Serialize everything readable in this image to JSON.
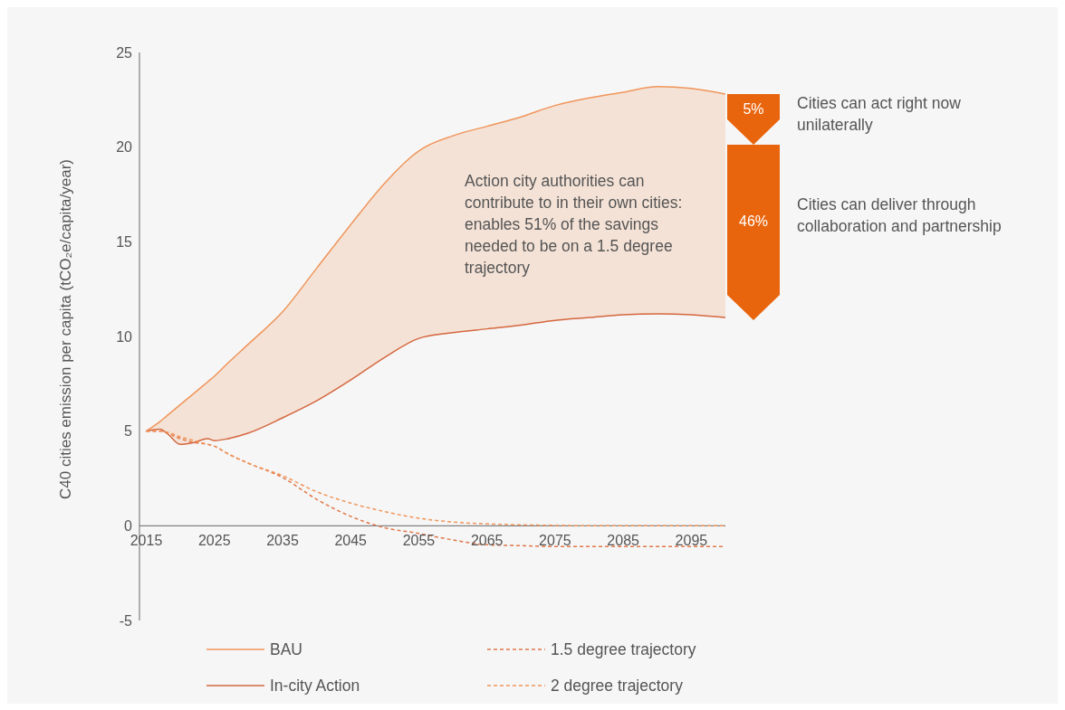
{
  "chart_data": {
    "type": "line",
    "ylabel": "C40 cities emission per capita (tCO₂e/capita/year)",
    "x": [
      2015,
      2017,
      2018,
      2020,
      2022,
      2024,
      2025,
      2027,
      2030,
      2035,
      2040,
      2045,
      2050,
      2055,
      2060,
      2065,
      2070,
      2075,
      2080,
      2085,
      2090,
      2095,
      2100
    ],
    "series": [
      {
        "name": "BAU",
        "color": "#f0955a",
        "values": [
          5,
          5.5,
          5.8,
          6.4,
          7.0,
          7.6,
          7.9,
          8.6,
          9.6,
          11.3,
          13.6,
          15.9,
          18.1,
          19.8,
          20.6,
          21.1,
          21.6,
          22.2,
          22.6,
          22.9,
          23.2,
          23.1,
          22.8
        ],
        "lower": [
          5,
          5.1,
          4.9,
          4.3,
          4.4,
          4.6,
          4.5,
          4.6,
          4.9,
          5.7,
          6.6,
          7.7,
          8.9,
          9.9,
          10.2,
          10.4,
          10.6,
          10.85,
          11.0,
          11.15,
          11.2,
          11.15,
          11.0
        ],
        "upper": [
          5,
          5.5,
          5.8,
          6.4,
          7.0,
          7.6,
          7.9,
          8.6,
          9.6,
          11.3,
          13.6,
          15.9,
          18.1,
          19.8,
          20.6,
          21.1,
          21.6,
          22.2,
          22.6,
          22.9,
          23.2,
          23.1,
          22.8
        ]
      },
      {
        "name": "In-city Action",
        "color": "#d5673f",
        "values": [
          5,
          5.1,
          4.9,
          4.3,
          4.4,
          4.6,
          4.5,
          4.6,
          4.9,
          5.7,
          6.6,
          7.7,
          8.9,
          9.9,
          10.2,
          10.4,
          10.6,
          10.85,
          11.0,
          11.15,
          11.2,
          11.15,
          11.0
        ]
      },
      {
        "name": "1.5 degree trajectory",
        "color": "#e0784a",
        "line_style": "dashed",
        "values": [
          5,
          5,
          4.9,
          4.6,
          4.4,
          4.3,
          4.2,
          3.8,
          3.3,
          2.55,
          1.4,
          0.5,
          -0.1,
          -0.4,
          -0.75,
          -1.0,
          -1.05,
          -1.1,
          -1.1,
          -1.1,
          -1.1,
          -1.1,
          -1.1
        ]
      },
      {
        "name": "2 degree trajectory",
        "color": "#f0955a",
        "line_style": "dashed",
        "values": [
          5,
          5,
          4.95,
          4.7,
          4.5,
          4.3,
          4.2,
          3.8,
          3.3,
          2.65,
          1.8,
          1.2,
          0.75,
          0.4,
          0.2,
          0.1,
          0.05,
          0.02,
          0,
          0,
          0,
          0,
          0
        ]
      }
    ],
    "xlim": [
      2014,
      2100
    ],
    "xticks": [
      2015,
      2025,
      2035,
      2045,
      2055,
      2065,
      2075,
      2085,
      2095
    ],
    "ylim": [
      -5,
      25
    ],
    "yticks": [
      -5,
      0,
      5,
      10,
      15,
      20,
      25
    ],
    "grid": false,
    "legend": "bottom",
    "marker": "none",
    "annotations": [
      "Action city authorities can contribute to in their own cities: enables 51% of the savings needed to be on a 1.5 degree trajectory",
      "5%",
      "46%",
      "Cities can act right now unilaterally",
      "Cities can deliver through collaboration and partnership"
    ]
  }
}
